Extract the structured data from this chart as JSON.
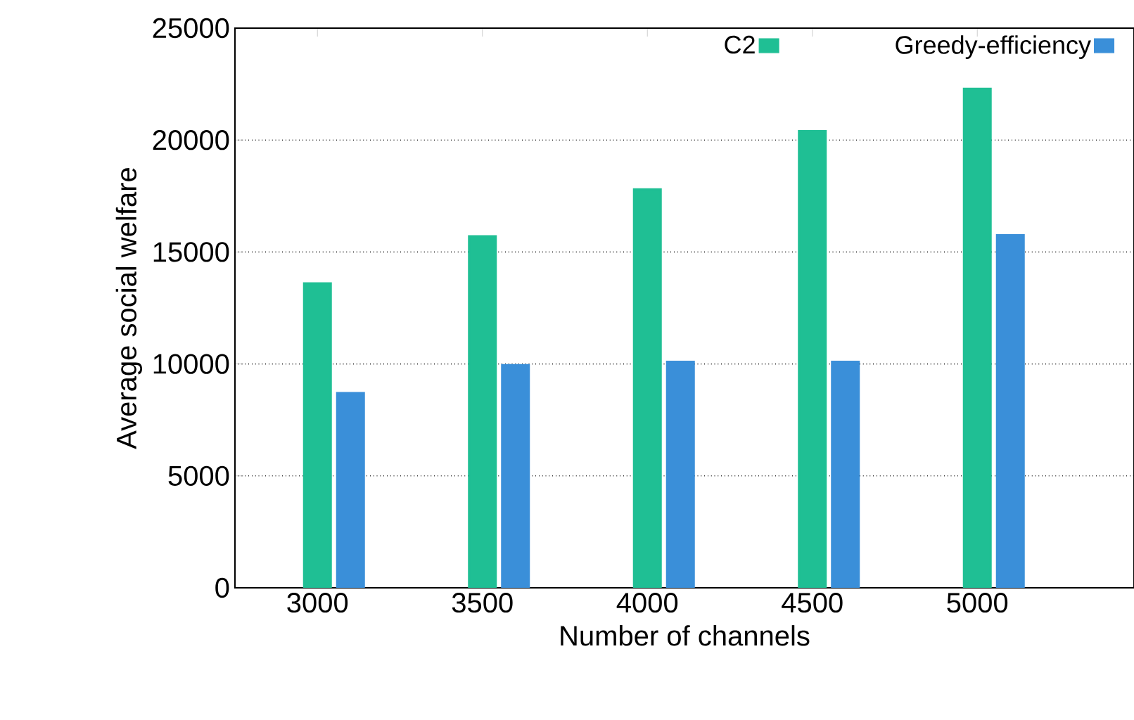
{
  "chart_data": {
    "type": "bar",
    "xlabel": "Number of channels",
    "ylabel": "Average social welfare",
    "categories": [
      "3000",
      "3500",
      "4000",
      "4500",
      "5000"
    ],
    "series": [
      {
        "name": "C2",
        "color": "#1fbf94",
        "values": [
          13600,
          15700,
          17800,
          20400,
          22300
        ]
      },
      {
        "name": "Greedy-efficiency",
        "color": "#3a8fd9",
        "values": [
          8700,
          9950,
          10100,
          10100,
          15750
        ]
      }
    ],
    "ylim": [
      0,
      25000
    ],
    "yticks": [
      0,
      5000,
      10000,
      15000,
      20000,
      25000
    ],
    "grid": "y",
    "legend": "top right"
  }
}
